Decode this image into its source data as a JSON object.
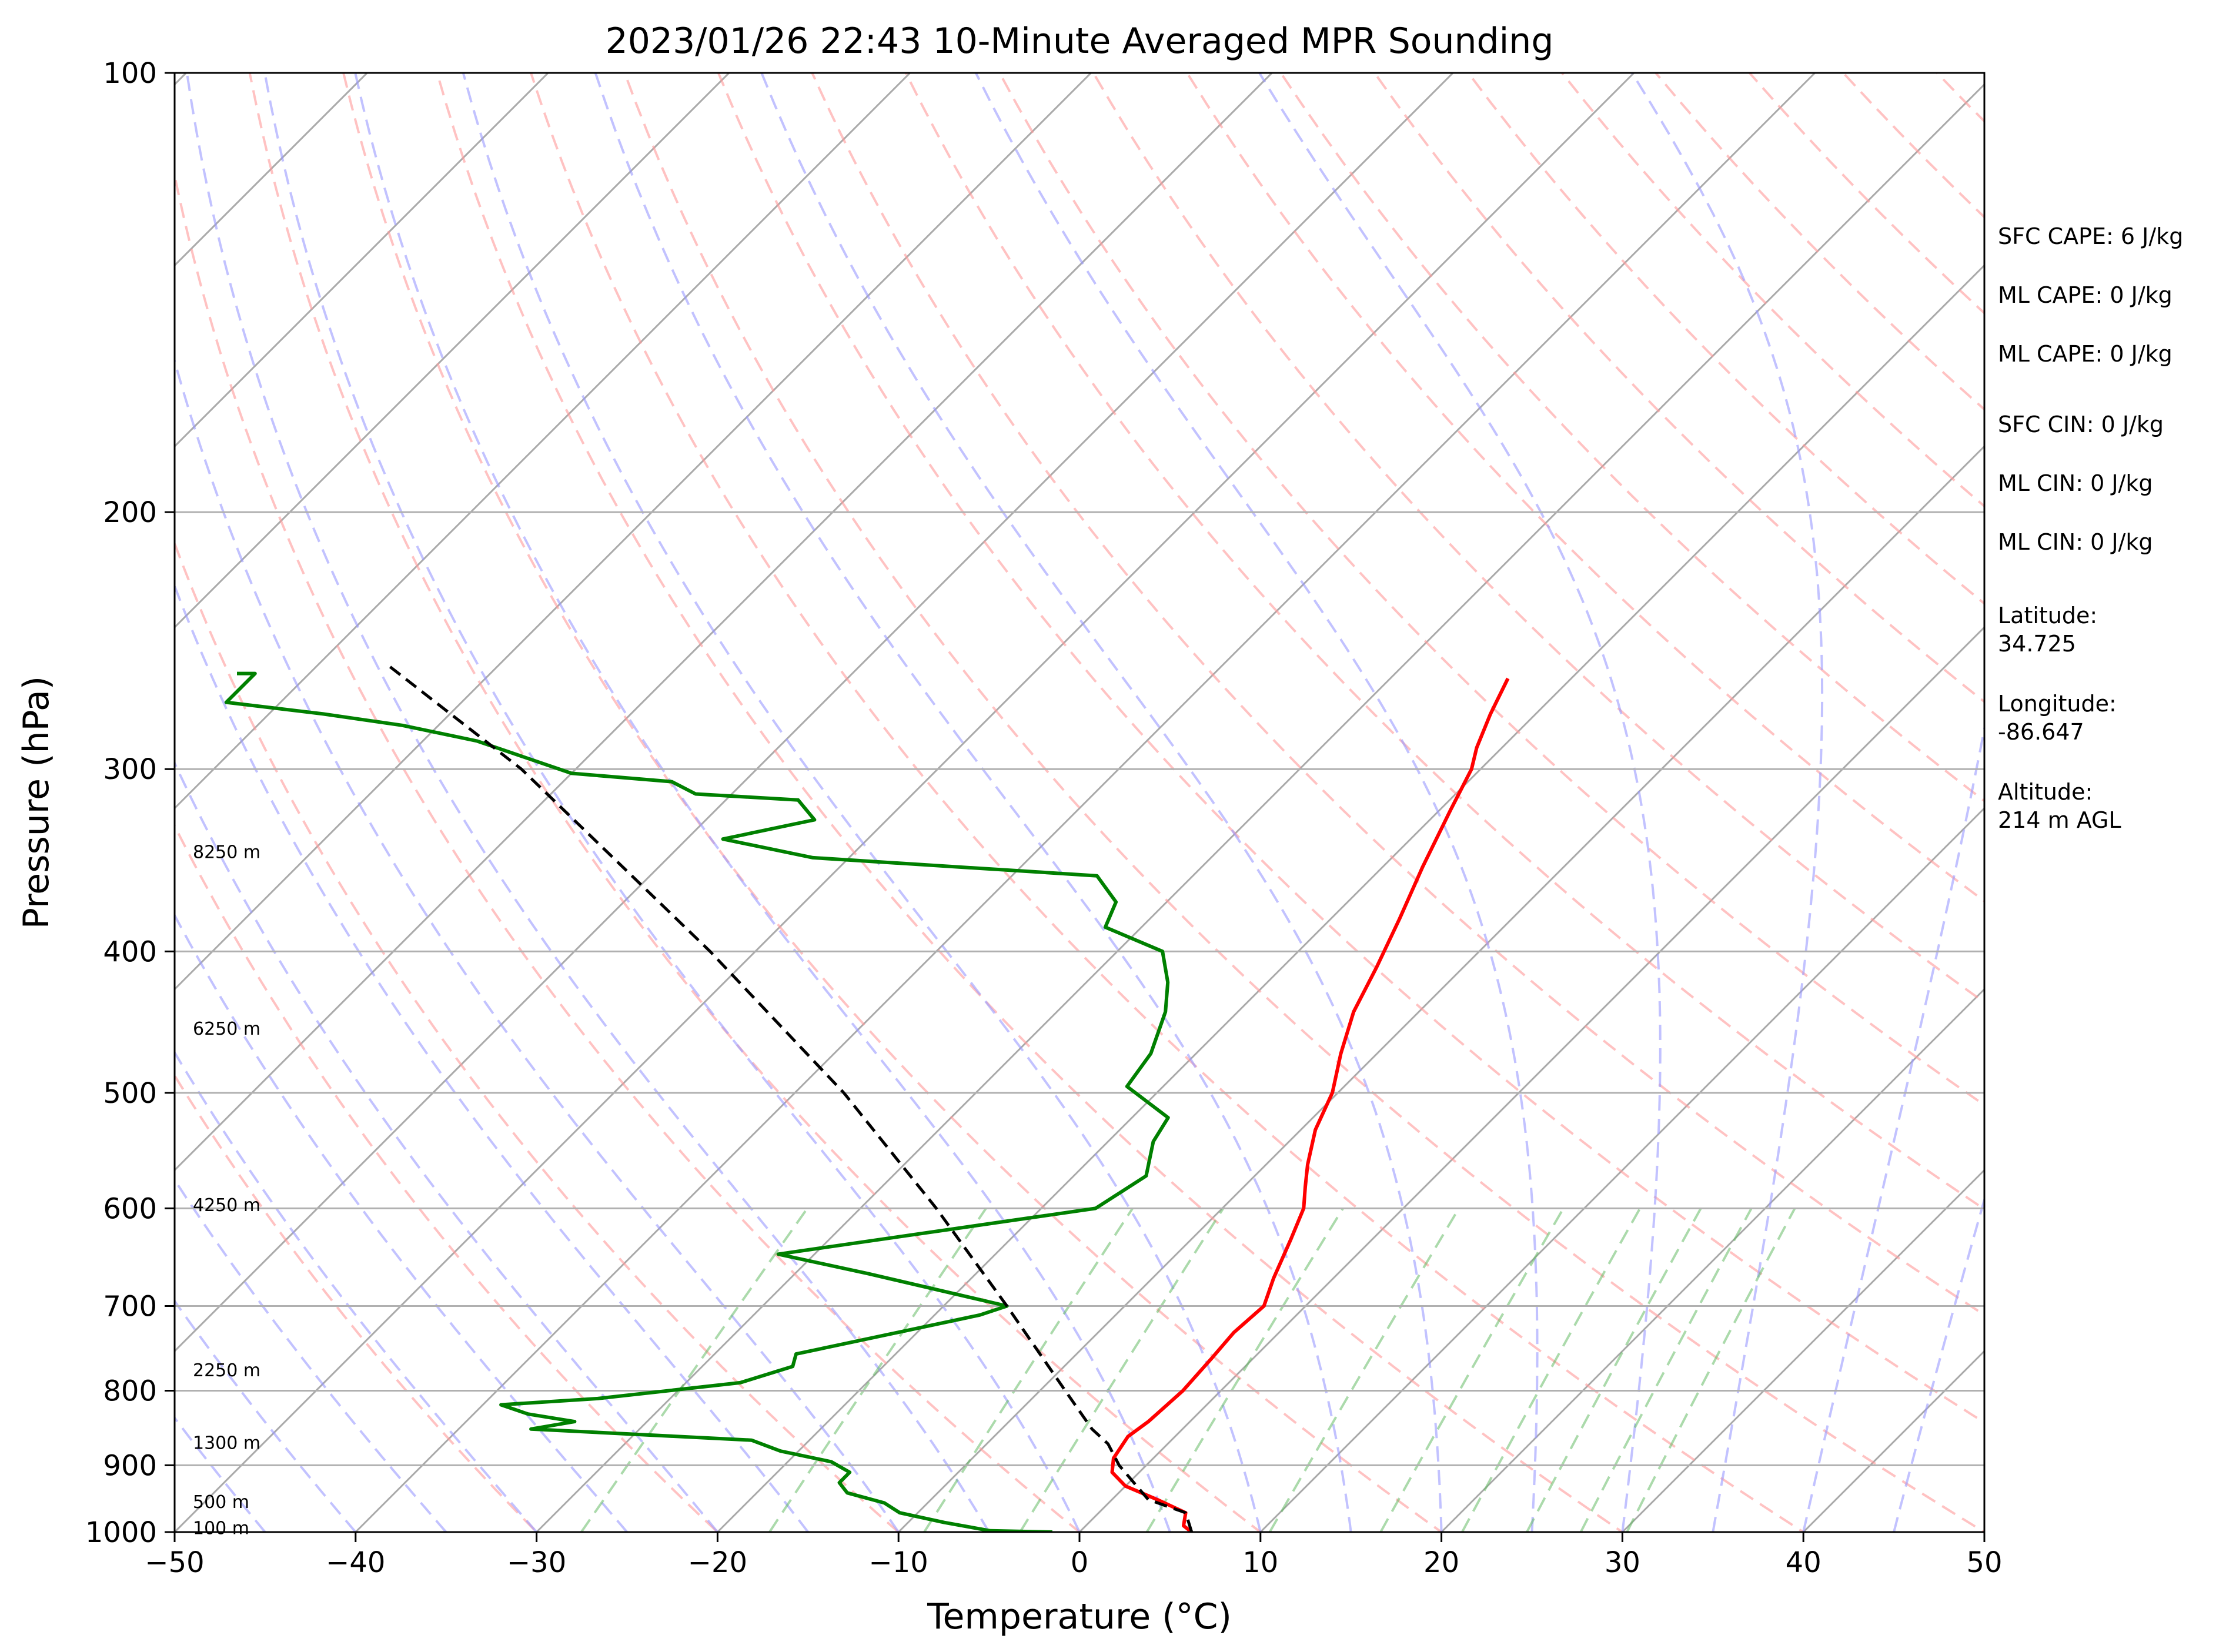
{
  "chart_data": {
    "type": "line",
    "title": "2023/01/26 22:43 10-Minute Averaged MPR Sounding",
    "xlabel": "Temperature (°C)",
    "ylabel": "Pressure (hPa)",
    "xlim": [
      -50,
      50
    ],
    "ylim": [
      1000,
      100
    ],
    "y_scale": "log",
    "skew": "skew-T log-P",
    "x_ticks": [
      -50,
      -40,
      -30,
      -20,
      -10,
      0,
      10,
      20,
      30,
      40,
      50
    ],
    "x_tick_labels": [
      "−50",
      "−40",
      "−30",
      "−20",
      "−10",
      "0",
      "10",
      "20",
      "30",
      "40",
      "50"
    ],
    "y_ticks": [
      1000,
      900,
      800,
      700,
      600,
      500,
      400,
      300,
      200,
      100
    ],
    "y_tick_labels": [
      "1000",
      "900",
      "800",
      "700",
      "600",
      "500",
      "400",
      "300",
      "200",
      "100"
    ],
    "grid": "horizontal isobars",
    "series": [
      {
        "role": "temperature",
        "color": "#ff0000",
        "points": [
          [
            1000,
            6.2
          ],
          [
            990,
            5.4
          ],
          [
            970,
            4.8
          ],
          [
            950,
            2.5
          ],
          [
            930,
            0
          ],
          [
            910,
            -1.5
          ],
          [
            890,
            -2.2
          ],
          [
            860,
            -2.6
          ],
          [
            840,
            -2.3
          ],
          [
            820,
            -2.2
          ],
          [
            800,
            -2.1
          ],
          [
            760,
            -2.3
          ],
          [
            730,
            -2.5
          ],
          [
            700,
            -2.3
          ],
          [
            670,
            -3.3
          ],
          [
            630,
            -4.5
          ],
          [
            600,
            -5.5
          ],
          [
            580,
            -6.6
          ],
          [
            560,
            -7.7
          ],
          [
            530,
            -9.2
          ],
          [
            500,
            -10.3
          ],
          [
            470,
            -12
          ],
          [
            440,
            -13.6
          ],
          [
            410,
            -14.8
          ],
          [
            380,
            -16.2
          ],
          [
            350,
            -17.8
          ],
          [
            320,
            -19.4
          ],
          [
            300,
            -20.5
          ],
          [
            290,
            -21.4
          ],
          [
            275,
            -22.5
          ],
          [
            260,
            -23.5
          ]
        ]
      },
      {
        "role": "dewpoint",
        "color": "#008000",
        "points": [
          [
            1000,
            -1.5
          ],
          [
            998,
            -5
          ],
          [
            985,
            -8
          ],
          [
            970,
            -11
          ],
          [
            955,
            -12.4
          ],
          [
            940,
            -15
          ],
          [
            925,
            -16
          ],
          [
            910,
            -16
          ],
          [
            895,
            -17.6
          ],
          [
            880,
            -21
          ],
          [
            865,
            -23.2
          ],
          [
            850,
            -36
          ],
          [
            840,
            -34
          ],
          [
            830,
            -37
          ],
          [
            818,
            -39
          ],
          [
            810,
            -34
          ],
          [
            790,
            -27
          ],
          [
            770,
            -25
          ],
          [
            755,
            -25.5
          ],
          [
            710,
            -17.5
          ],
          [
            700,
            -16.5
          ],
          [
            665,
            -26
          ],
          [
            645,
            -32
          ],
          [
            600,
            -17
          ],
          [
            570,
            -16
          ],
          [
            540,
            -17.5
          ],
          [
            520,
            -18
          ],
          [
            495,
            -22
          ],
          [
            470,
            -22.5
          ],
          [
            440,
            -24
          ],
          [
            420,
            -25.5
          ],
          [
            400,
            -27.5
          ],
          [
            385,
            -32
          ],
          [
            370,
            -32.8
          ],
          [
            355,
            -35.3
          ],
          [
            345,
            -52
          ],
          [
            335,
            -58
          ],
          [
            325,
            -54
          ],
          [
            315,
            -56
          ],
          [
            312,
            -62
          ],
          [
            306,
            -64
          ],
          [
            302,
            -70
          ],
          [
            287,
            -77
          ],
          [
            280,
            -82
          ],
          [
            275,
            -87
          ],
          [
            270,
            -93
          ],
          [
            262,
            -93
          ],
          [
            258,
            -93
          ],
          [
            258,
            -94
          ]
        ]
      },
      {
        "role": "parcel",
        "color": "#000000",
        "style": "dashed",
        "points": [
          [
            1000,
            6.2
          ],
          [
            970,
            4.8
          ],
          [
            950,
            2
          ],
          [
            900,
            -1.5
          ],
          [
            870,
            -3.3
          ],
          [
            850,
            -5
          ],
          [
            800,
            -8.6
          ],
          [
            700,
            -16.5
          ],
          [
            600,
            -25.8
          ],
          [
            500,
            -37.3
          ],
          [
            400,
            -52.5
          ],
          [
            300,
            -73
          ],
          [
            255,
            -86
          ]
        ]
      }
    ],
    "background_lines": {
      "dry_adiabats_color": "#ff9999",
      "moist_adiabats_color": "#9999ff",
      "mixing_ratio_color": "#66bb66",
      "isotherms_color": "#aaaaaa"
    },
    "height_labels": [
      {
        "text": "100 m",
        "p": 994
      },
      {
        "text": "500 m",
        "p": 954
      },
      {
        "text": "1300 m",
        "p": 869
      },
      {
        "text": "2250 m",
        "p": 775
      },
      {
        "text": "4250 m",
        "p": 597
      },
      {
        "text": "6250 m",
        "p": 452
      },
      {
        "text": "8250 m",
        "p": 342
      }
    ],
    "annotations": [
      {
        "text": "SFC CAPE: 6 J/kg"
      },
      {
        "text": "ML CAPE: 0 J/kg"
      },
      {
        "text": "ML CAPE: 0 J/kg"
      },
      {
        "text": "SFC CIN: 0 J/kg"
      },
      {
        "text": "ML CIN: 0 J/kg"
      },
      {
        "text": "ML CIN: 0 J/kg"
      },
      {
        "text": "Latitude:\n34.725"
      },
      {
        "text": "Longitude:\n-86.647"
      },
      {
        "text": "Altitude:\n214 m AGL"
      }
    ]
  }
}
